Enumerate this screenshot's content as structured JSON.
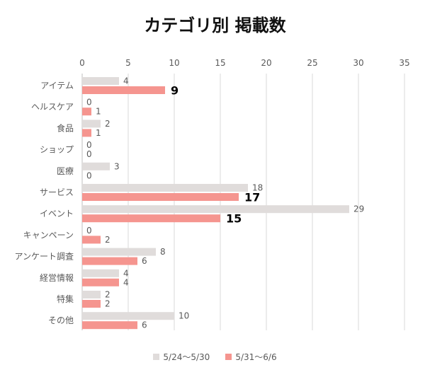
{
  "chart_data": {
    "type": "bar",
    "orientation": "horizontal",
    "title": "カテゴリ別 掲載数",
    "xlim": [
      0,
      35
    ],
    "xticks": [
      0,
      5,
      10,
      15,
      20,
      25,
      30,
      35
    ],
    "grid": true,
    "legend_position": "bottom",
    "categories": [
      "アイテム",
      "ヘルスケア",
      "食品",
      "ショップ",
      "医療",
      "サービス",
      "イベント",
      "キャンペーン",
      "アンケート調査",
      "経営情報",
      "特集",
      "その他"
    ],
    "series": [
      {
        "name": "5/24～5/30",
        "color": "#e0dcdb",
        "values": [
          4,
          0,
          2,
          0,
          3,
          18,
          29,
          0,
          8,
          4,
          2,
          10
        ]
      },
      {
        "name": "5/31～6/6",
        "color": "#f5958f",
        "values": [
          9,
          1,
          1,
          0,
          0,
          17,
          15,
          2,
          6,
          4,
          2,
          6
        ]
      }
    ],
    "emphasized_labels": {
      "series": 1,
      "categories": [
        "アイテム",
        "サービス",
        "イベント"
      ]
    }
  }
}
